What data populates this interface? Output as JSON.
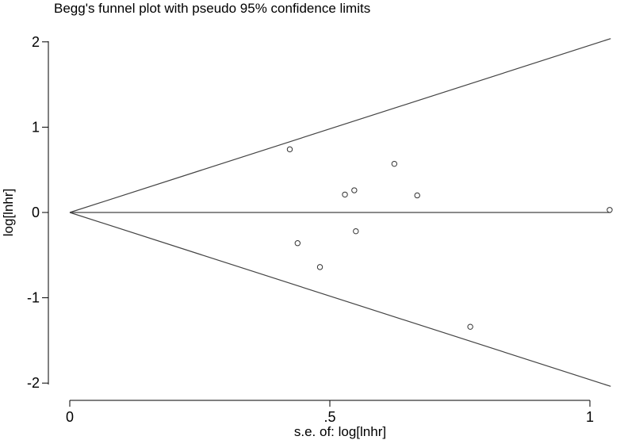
{
  "chart_data": {
    "type": "scatter",
    "title": "Begg's funnel plot with pseudo 95% confidence limits",
    "xlabel": "s.e. of: log[lnhr]",
    "ylabel": "log[lnhr]",
    "xlim": [
      0,
      1.04
    ],
    "ylim": [
      -2,
      2
    ],
    "xticks": [
      {
        "value": 0,
        "label": "0"
      },
      {
        "value": 0.5,
        "label": ".5"
      },
      {
        "value": 1,
        "label": "1"
      }
    ],
    "yticks": [
      {
        "value": 2,
        "label": "2"
      },
      {
        "value": 1,
        "label": "1"
      },
      {
        "value": 0,
        "label": "0"
      },
      {
        "value": -1,
        "label": "-1"
      },
      {
        "value": -2,
        "label": "-2"
      }
    ],
    "grid": false,
    "pooled_estimate": 0,
    "confidence_limit_multiplier": 1.96,
    "points": [
      {
        "x": 0.423,
        "y": 0.74
      },
      {
        "x": 0.438,
        "y": -0.36
      },
      {
        "x": 0.481,
        "y": -0.64
      },
      {
        "x": 0.529,
        "y": 0.21
      },
      {
        "x": 0.547,
        "y": 0.26
      },
      {
        "x": 0.55,
        "y": -0.22
      },
      {
        "x": 0.624,
        "y": 0.57
      },
      {
        "x": 0.668,
        "y": 0.2
      },
      {
        "x": 0.77,
        "y": -1.34
      },
      {
        "x": 1.038,
        "y": 0.03
      }
    ]
  }
}
